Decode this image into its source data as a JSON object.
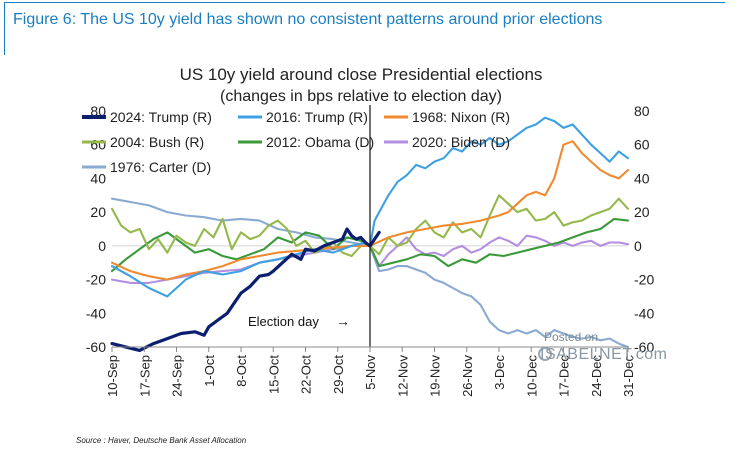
{
  "figure_caption": "Figure 6: The US 10y yield has shown no consistent patterns around prior elections",
  "source_note": "Source : Haver, Deutsche Bank Asset Allocation",
  "watermark": {
    "line1": "Posted on",
    "line2": "ISABELNET.com"
  },
  "colors": {
    "2024: Trump (R)": "#0b1f6e",
    "2016: Trump (R)": "#3da0e0",
    "1968: Nixon (R)": "#f08a30",
    "2004: Bush (R)": "#94b84a",
    "2012: Obama (D)": "#3a9a3a",
    "2020: Biden (D)": "#b48ee0",
    "1976: Carter (D)": "#8aaad0"
  },
  "chart_data": {
    "type": "line",
    "title": "US 10y yield around close Presidential elections",
    "subtitle": "(changes in bps relative to election day)",
    "xlabel": "",
    "ylabel": "",
    "ylim": [
      -60,
      80
    ],
    "yticks": [
      -60,
      -40,
      -20,
      0,
      20,
      40,
      60,
      80
    ],
    "xlim": [
      0,
      112
    ],
    "xtick_labels": [
      "10-Sep",
      "17-Sep",
      "24-Sep",
      "1-Oct",
      "8-Oct",
      "15-Oct",
      "22-Oct",
      "29-Oct",
      "5-Nov",
      "12-Nov",
      "19-Nov",
      "26-Nov",
      "3-Dec",
      "10-Dec",
      "17-Dec",
      "24-Dec",
      "31-Dec"
    ],
    "xtick_days": [
      0,
      7,
      14,
      21,
      28,
      35,
      42,
      49,
      56,
      63,
      70,
      77,
      84,
      91,
      98,
      105,
      112
    ],
    "election_day": 56,
    "annotation": "Election day",
    "annotation_arrow": "→",
    "legend_position": "top-left",
    "series": [
      {
        "name": "2024: Trump (R)",
        "x": [
          0,
          6,
          9,
          12,
          15,
          18,
          20,
          21,
          23,
          25,
          27,
          28,
          30,
          32,
          34,
          35,
          37,
          39,
          41,
          42,
          44,
          46,
          48,
          50,
          51,
          52,
          53,
          54,
          55,
          56,
          57,
          58
        ],
        "values": [
          -58,
          -62,
          -58,
          -55,
          -52,
          -51,
          -53,
          -48,
          -44,
          -40,
          -32,
          -28,
          -24,
          -18,
          -17,
          -15,
          -10,
          -5,
          -8,
          -2,
          -3,
          0,
          2,
          4,
          10,
          6,
          4,
          5,
          2,
          0,
          4,
          8
        ]
      },
      {
        "name": "2016: Trump (R)",
        "x": [
          0,
          4,
          8,
          12,
          16,
          20,
          24,
          28,
          32,
          36,
          40,
          44,
          48,
          52,
          55,
          56,
          57,
          58,
          60,
          62,
          64,
          66,
          68,
          70,
          72,
          74,
          76,
          78,
          80,
          82,
          84,
          86,
          88,
          90,
          92,
          94,
          96,
          98,
          100,
          102,
          104,
          106,
          108,
          110,
          112
        ],
        "values": [
          -12,
          -18,
          -25,
          -30,
          -20,
          -15,
          -17,
          -15,
          -10,
          -8,
          -5,
          -2,
          -4,
          0,
          2,
          0,
          15,
          20,
          30,
          38,
          42,
          48,
          46,
          50,
          52,
          58,
          56,
          62,
          60,
          64,
          60,
          62,
          66,
          70,
          72,
          76,
          74,
          70,
          72,
          66,
          60,
          55,
          50,
          56,
          52
        ]
      },
      {
        "name": "1968: Nixon (R)",
        "x": [
          0,
          4,
          8,
          12,
          16,
          20,
          24,
          28,
          32,
          36,
          40,
          44,
          48,
          52,
          56,
          60,
          64,
          68,
          72,
          76,
          80,
          84,
          86,
          88,
          90,
          92,
          94,
          96,
          98,
          100,
          102,
          104,
          106,
          108,
          110,
          112
        ],
        "values": [
          -10,
          -15,
          -18,
          -20,
          -17,
          -15,
          -12,
          -8,
          -6,
          -4,
          -3,
          -2,
          -1,
          0,
          0,
          5,
          8,
          10,
          12,
          13,
          15,
          18,
          20,
          25,
          30,
          32,
          30,
          40,
          60,
          62,
          55,
          50,
          45,
          42,
          40,
          45
        ]
      },
      {
        "name": "2004: Bush (R)",
        "x": [
          0,
          2,
          4,
          6,
          8,
          10,
          12,
          14,
          16,
          18,
          20,
          22,
          24,
          26,
          28,
          30,
          32,
          34,
          36,
          38,
          40,
          42,
          44,
          46,
          48,
          50,
          52,
          54,
          56,
          58,
          60,
          62,
          64,
          66,
          68,
          70,
          72,
          74,
          76,
          78,
          80,
          82,
          84,
          86,
          88,
          90,
          92,
          94,
          96,
          98,
          100,
          102,
          104,
          106,
          108,
          110,
          112
        ],
        "values": [
          22,
          12,
          8,
          10,
          -2,
          4,
          -4,
          6,
          2,
          0,
          10,
          5,
          16,
          -2,
          8,
          4,
          6,
          12,
          15,
          10,
          0,
          3,
          -4,
          -2,
          2,
          -4,
          -6,
          0,
          0,
          -5,
          5,
          0,
          2,
          10,
          15,
          8,
          5,
          14,
          8,
          10,
          5,
          18,
          30,
          25,
          20,
          22,
          15,
          16,
          20,
          12,
          14,
          15,
          18,
          20,
          22,
          28,
          22
        ]
      },
      {
        "name": "2012: Obama (D)",
        "x": [
          0,
          3,
          6,
          9,
          12,
          15,
          18,
          21,
          24,
          27,
          30,
          33,
          36,
          39,
          42,
          45,
          48,
          51,
          54,
          56,
          58,
          61,
          64,
          67,
          70,
          73,
          76,
          79,
          82,
          85,
          88,
          91,
          94,
          97,
          100,
          103,
          106,
          109,
          112
        ],
        "values": [
          -15,
          -8,
          -2,
          4,
          8,
          2,
          -4,
          -2,
          -6,
          -8,
          -5,
          -2,
          5,
          2,
          8,
          6,
          -2,
          5,
          3,
          0,
          -12,
          -10,
          -8,
          -5,
          -6,
          -12,
          -8,
          -10,
          -5,
          -6,
          -4,
          -2,
          0,
          2,
          5,
          8,
          10,
          16,
          15
        ]
      },
      {
        "name": "2020: Biden (D)",
        "x": [
          0,
          4,
          8,
          12,
          16,
          20,
          24,
          28,
          32,
          36,
          40,
          44,
          48,
          52,
          56,
          58,
          60,
          62,
          64,
          66,
          68,
          70,
          72,
          74,
          76,
          78,
          80,
          82,
          84,
          86,
          88,
          90,
          92,
          94,
          96,
          98,
          100,
          102,
          104,
          106,
          108,
          110,
          112
        ],
        "values": [
          -20,
          -22,
          -22,
          -20,
          -18,
          -16,
          -15,
          -14,
          -10,
          -8,
          -6,
          -4,
          -2,
          0,
          0,
          -12,
          -5,
          0,
          5,
          -2,
          -5,
          -4,
          -6,
          -2,
          0,
          -4,
          -2,
          2,
          5,
          3,
          0,
          6,
          5,
          3,
          0,
          2,
          0,
          2,
          3,
          0,
          2,
          2,
          1
        ]
      },
      {
        "name": "1976: Carter (D)",
        "x": [
          0,
          4,
          8,
          12,
          16,
          20,
          24,
          28,
          32,
          36,
          40,
          44,
          48,
          52,
          56,
          58,
          60,
          62,
          64,
          66,
          68,
          70,
          72,
          74,
          76,
          78,
          80,
          82,
          84,
          86,
          88,
          90,
          92,
          94,
          96,
          98,
          100,
          102,
          104,
          106,
          108,
          110,
          112
        ],
        "values": [
          28,
          26,
          24,
          20,
          18,
          17,
          15,
          16,
          15,
          10,
          8,
          5,
          4,
          2,
          0,
          -15,
          -14,
          -12,
          -12,
          -14,
          -16,
          -20,
          -22,
          -25,
          -28,
          -30,
          -35,
          -45,
          -50,
          -52,
          -50,
          -52,
          -50,
          -54,
          -50,
          -52,
          -54,
          -55,
          -54,
          -56,
          -55,
          -58,
          -60
        ]
      }
    ]
  }
}
